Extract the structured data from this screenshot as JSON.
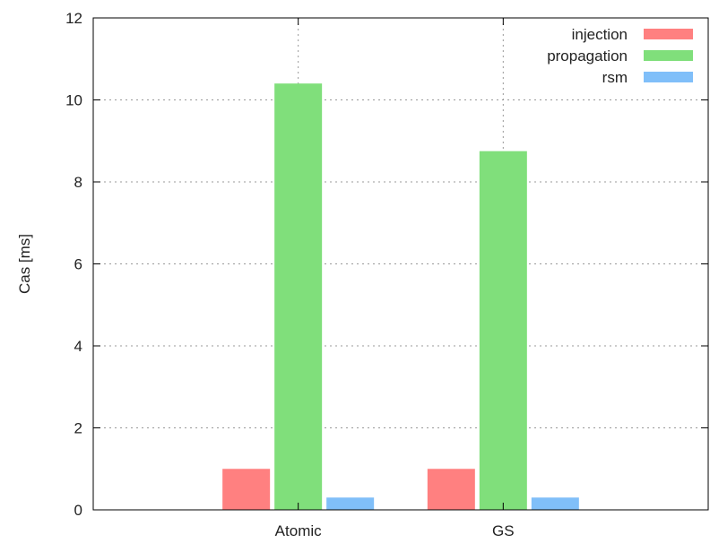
{
  "chart_data": {
    "type": "bar",
    "title": "",
    "xlabel": "",
    "ylabel": "Cas [ms]",
    "ylim": [
      0,
      12
    ],
    "yticks": [
      0,
      2,
      4,
      6,
      8,
      10,
      12
    ],
    "grid": true,
    "legend_position": "top-right",
    "categories": [
      "Atomic",
      "GS"
    ],
    "series": [
      {
        "name": "injection",
        "color": "#ff8080",
        "values": [
          1.0,
          1.0
        ]
      },
      {
        "name": "propagation",
        "color": "#80df7b",
        "values": [
          10.4,
          8.75
        ]
      },
      {
        "name": "rsm",
        "color": "#80bff9",
        "values": [
          0.3,
          0.3
        ]
      }
    ]
  }
}
